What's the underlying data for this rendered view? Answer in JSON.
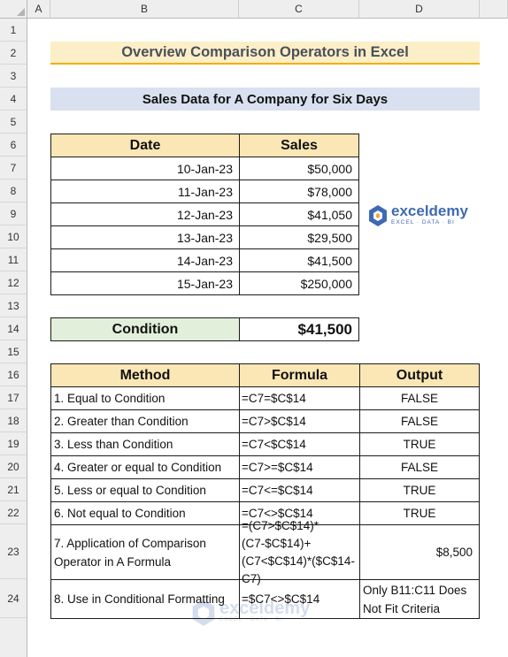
{
  "columns": [
    "A",
    "B",
    "C",
    "D"
  ],
  "rows": [
    "1",
    "2",
    "3",
    "4",
    "5",
    "6",
    "7",
    "8",
    "9",
    "10",
    "11",
    "12",
    "13",
    "14",
    "15",
    "16",
    "17",
    "18",
    "19",
    "20",
    "21",
    "22",
    "23",
    "24"
  ],
  "title": "Overview Comparison Operators in Excel",
  "subtitle": "Sales Data for A Company for Six Days",
  "sales_table": {
    "headers": [
      "Date",
      "Sales"
    ],
    "rows": [
      [
        "10-Jan-23",
        "$50,000"
      ],
      [
        "11-Jan-23",
        "$78,000"
      ],
      [
        "12-Jan-23",
        "$41,050"
      ],
      [
        "13-Jan-23",
        "$29,500"
      ],
      [
        "14-Jan-23",
        "$41,500"
      ],
      [
        "15-Jan-23",
        "$250,000"
      ]
    ]
  },
  "condition": {
    "label": "Condition",
    "value": "$41,500"
  },
  "method_table": {
    "headers": [
      "Method",
      "Formula",
      "Output"
    ],
    "rows": [
      [
        "1. Equal to Condition",
        "=C7=$C$14",
        "FALSE"
      ],
      [
        "2. Greater than Condition",
        "=C7>$C$14",
        "FALSE"
      ],
      [
        "3. Less than Condition",
        "=C7<$C$14",
        "TRUE"
      ],
      [
        "4. Greater or equal to Condition",
        "=C7>=$C$14",
        "FALSE"
      ],
      [
        "5. Less or equal to Condition",
        "=C7<=$C$14",
        "TRUE"
      ],
      [
        "6. Not equal to Condition",
        "=C7<>$C$14",
        "TRUE"
      ],
      [
        "7. Application of Comparison Operator in A Formula",
        "=(C7>$C$14)*(C7-$C$14)+(C7<$C$14)*($C$14-C7)",
        "$8,500"
      ],
      [
        "8. Use in Conditional Formatting",
        "=$C7<>$C$14",
        "Only B11:C11 Does Not Fit Criteria"
      ]
    ]
  },
  "logo": {
    "name": "exceldemy",
    "tagline": "EXCEL · DATA · BI"
  },
  "colors": {
    "title_fill": "#fcefc7",
    "title_underline": "#f0b000",
    "subtitle_fill": "#d9e0f0",
    "header_fill": "#fbe7b5",
    "condition_fill": "#e2efda",
    "logo_blue": "#3f6ab3"
  }
}
